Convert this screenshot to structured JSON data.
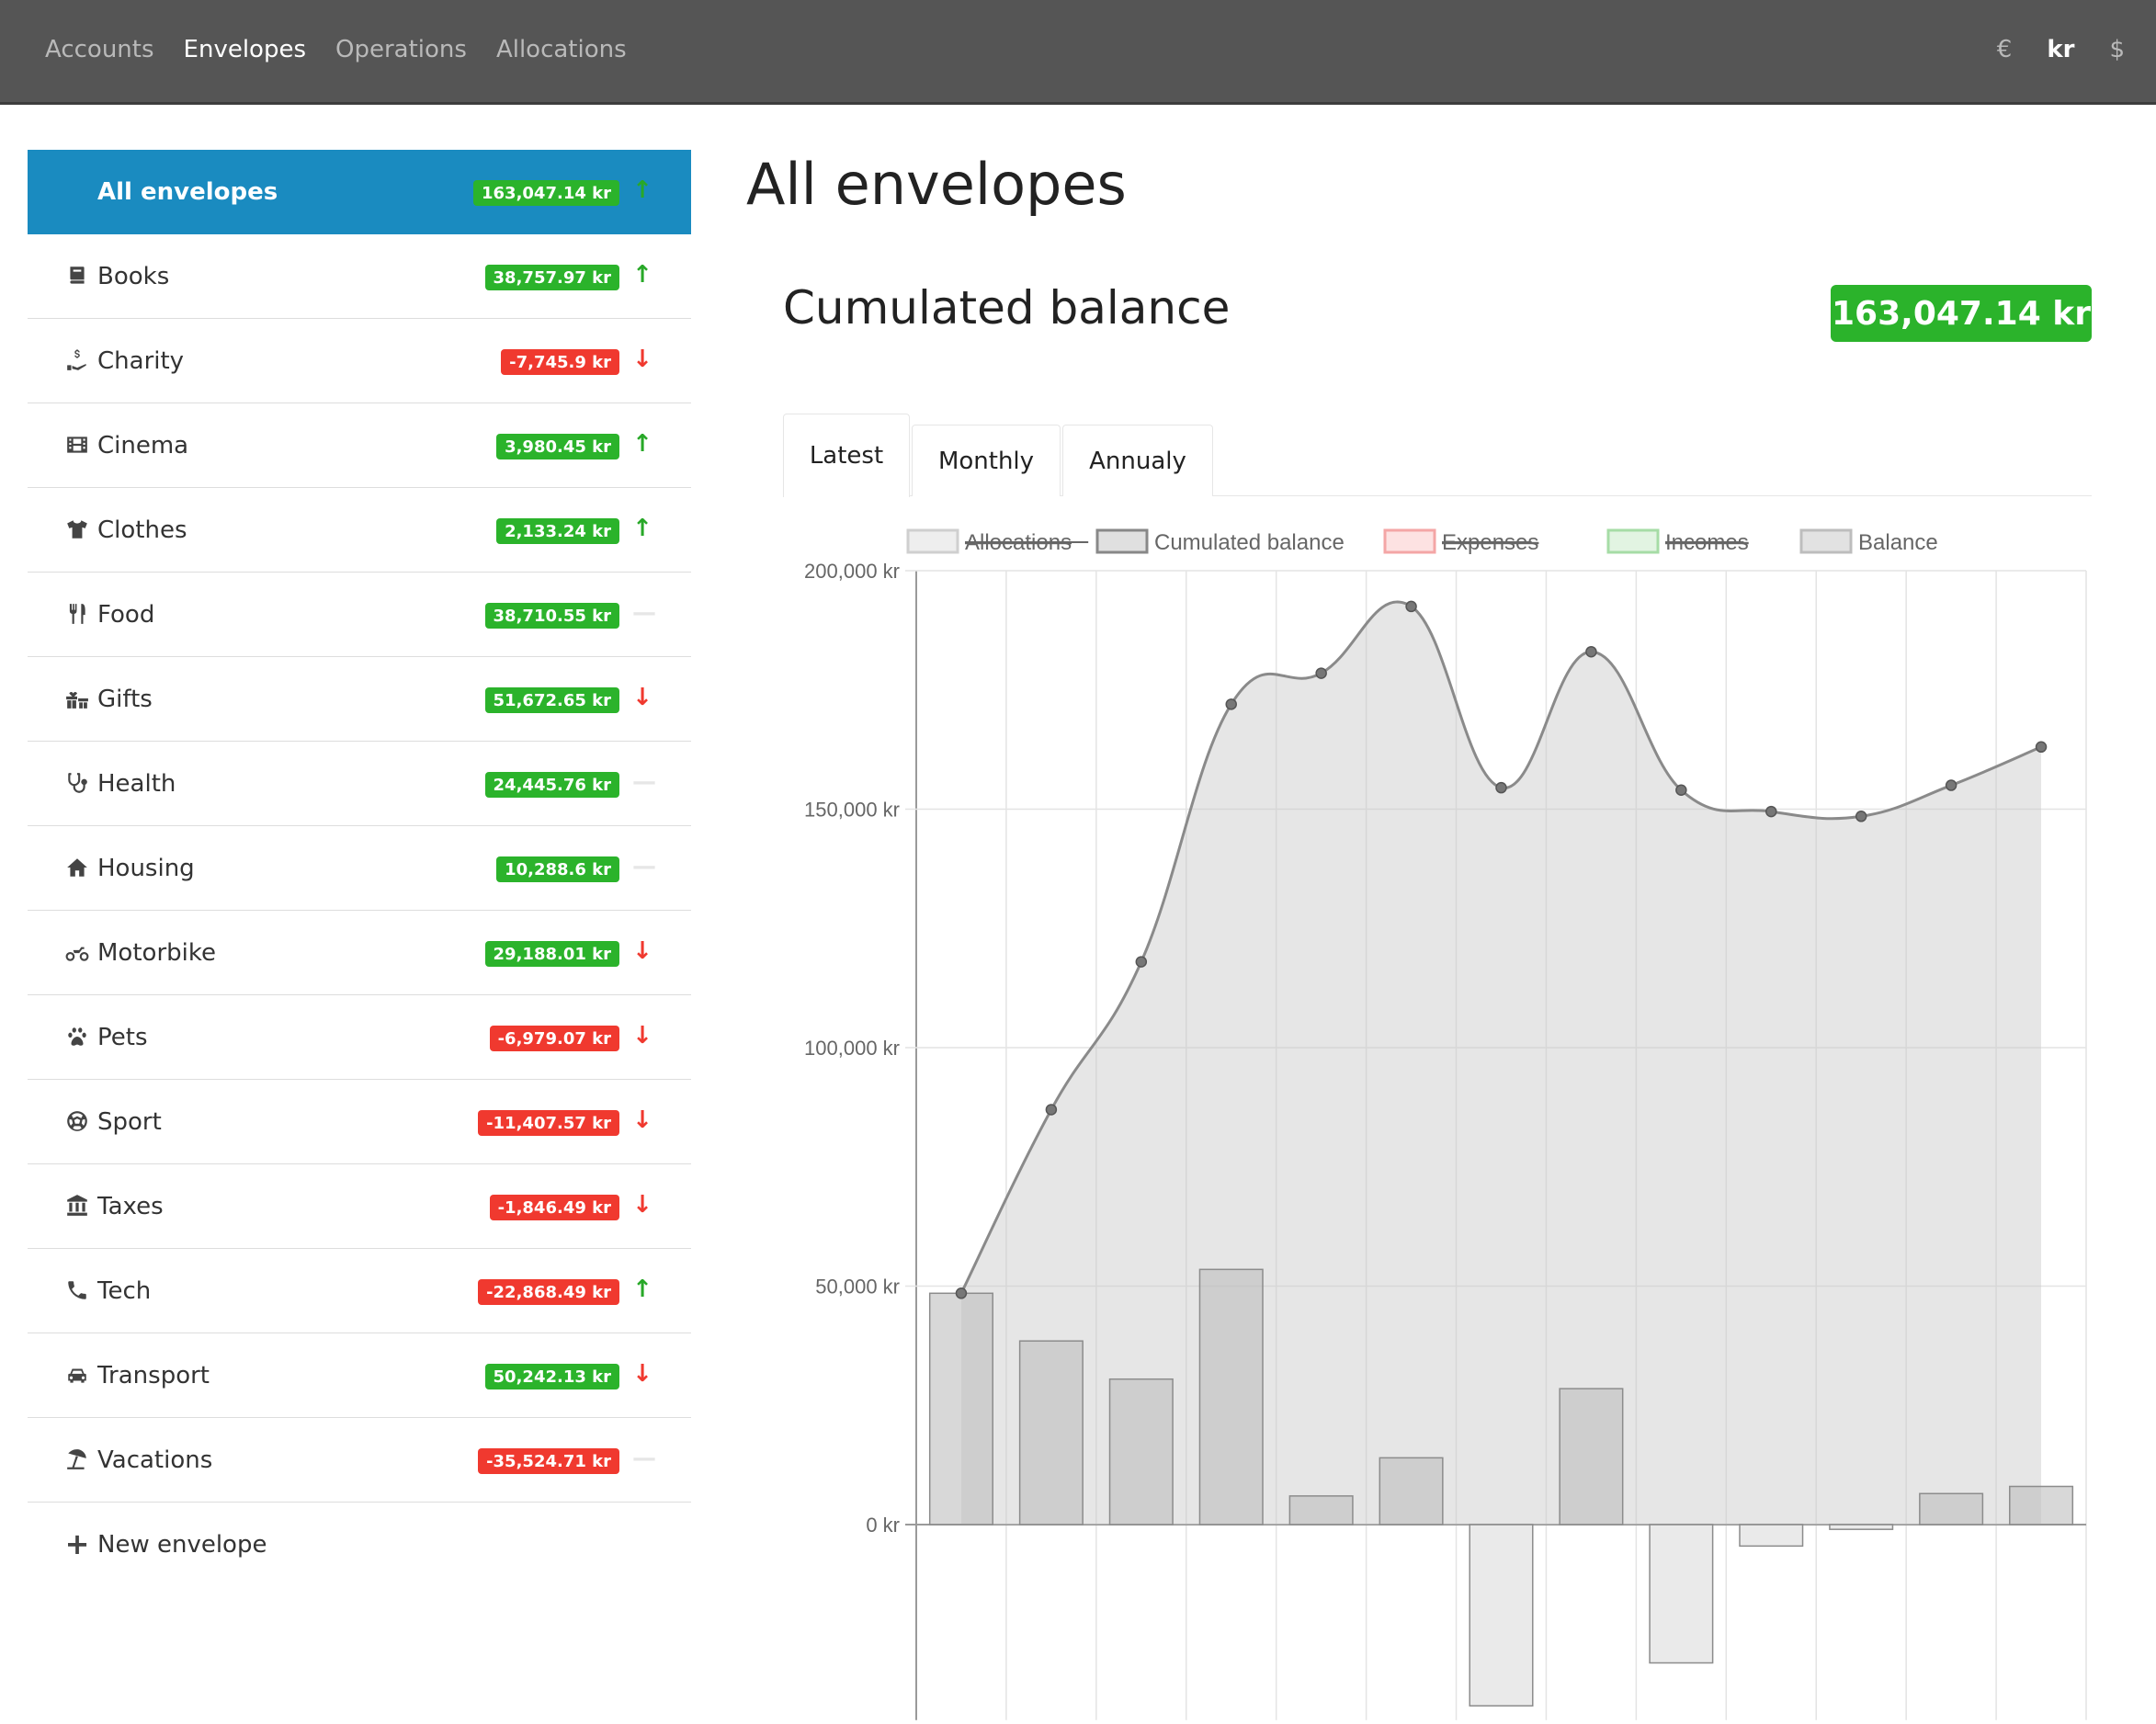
{
  "nav": {
    "links": [
      "Accounts",
      "Envelopes",
      "Operations",
      "Allocations"
    ],
    "active_link": "Envelopes",
    "currencies": [
      "€",
      "kr",
      "$"
    ],
    "active_currency": "kr"
  },
  "sidebar": {
    "items": [
      {
        "label": "All envelopes",
        "amount": "163,047.14 kr",
        "sign": "pos",
        "trend": "up",
        "icon": "none",
        "active": true
      },
      {
        "label": "Books",
        "amount": "38,757.97 kr",
        "sign": "pos",
        "trend": "up",
        "icon": "book-icon"
      },
      {
        "label": "Charity",
        "amount": "-7,745.9 kr",
        "sign": "neg",
        "trend": "down",
        "icon": "charity-hand-icon"
      },
      {
        "label": "Cinema",
        "amount": "3,980.45 kr",
        "sign": "pos",
        "trend": "up",
        "icon": "film-icon"
      },
      {
        "label": "Clothes",
        "amount": "2,133.24 kr",
        "sign": "pos",
        "trend": "up",
        "icon": "tshirt-icon"
      },
      {
        "label": "Food",
        "amount": "38,710.55 kr",
        "sign": "pos",
        "trend": "flat",
        "icon": "utensils-icon"
      },
      {
        "label": "Gifts",
        "amount": "51,672.65 kr",
        "sign": "pos",
        "trend": "down",
        "icon": "gifts-icon"
      },
      {
        "label": "Health",
        "amount": "24,445.76 kr",
        "sign": "pos",
        "trend": "flat",
        "icon": "stethoscope-icon"
      },
      {
        "label": "Housing",
        "amount": "10,288.6 kr",
        "sign": "pos",
        "trend": "flat",
        "icon": "home-icon"
      },
      {
        "label": "Motorbike",
        "amount": "29,188.01 kr",
        "sign": "pos",
        "trend": "down",
        "icon": "motorcycle-icon"
      },
      {
        "label": "Pets",
        "amount": "-6,979.07 kr",
        "sign": "neg",
        "trend": "down",
        "icon": "paw-icon"
      },
      {
        "label": "Sport",
        "amount": "-11,407.57 kr",
        "sign": "neg",
        "trend": "down",
        "icon": "football-icon"
      },
      {
        "label": "Taxes",
        "amount": "-1,846.49 kr",
        "sign": "neg",
        "trend": "down",
        "icon": "landmark-icon"
      },
      {
        "label": "Tech",
        "amount": "-22,868.49 kr",
        "sign": "neg",
        "trend": "up",
        "icon": "phone-icon"
      },
      {
        "label": "Transport",
        "amount": "50,242.13 kr",
        "sign": "pos",
        "trend": "down",
        "icon": "car-icon"
      },
      {
        "label": "Vacations",
        "amount": "-35,524.71 kr",
        "sign": "neg",
        "trend": "flat",
        "icon": "umbrella-beach-icon"
      }
    ],
    "new_label": "New envelope",
    "trend_glyphs": {
      "up": "↑",
      "down": "↓",
      "flat": "—"
    }
  },
  "main": {
    "page_title": "All envelopes",
    "section_title": "Cumulated balance",
    "total": "163,047.14 kr",
    "tabs": [
      "Latest",
      "Monthly",
      "Annualy"
    ],
    "active_tab": "Latest"
  },
  "chart_data": {
    "type": "line",
    "legend": [
      {
        "name": "Allocations",
        "hidden": true,
        "fill": "#eeeeee",
        "stroke": "#cfcfcf"
      },
      {
        "name": "Cumulated balance",
        "hidden": false,
        "fill": "#e0e0e0",
        "stroke": "#888888"
      },
      {
        "name": "Expenses",
        "hidden": true,
        "fill": "#fde2e2",
        "stroke": "#f4a6a6"
      },
      {
        "name": "Incomes",
        "hidden": true,
        "fill": "#e2f4e2",
        "stroke": "#a6dca6"
      },
      {
        "name": "Balance",
        "hidden": false,
        "fill": "#e2e2e2",
        "stroke": "#bdbdbd"
      }
    ],
    "legend_placement": "top",
    "y_ticks": [
      "200,000 kr",
      "150,000 kr",
      "100,000 kr",
      "50,000 kr",
      "0 kr"
    ],
    "ylim": [
      -41000,
      200000
    ],
    "points_count": 13,
    "series": [
      {
        "name": "Cumulated balance",
        "type": "line",
        "values": [
          48500,
          87000,
          118000,
          172000,
          178500,
          192500,
          154500,
          183000,
          154000,
          149500,
          148500,
          155000,
          163047.14
        ]
      },
      {
        "name": "Balance",
        "type": "bar",
        "values": [
          48500,
          38500,
          30500,
          53500,
          6000,
          14000,
          -38000,
          28500,
          -29000,
          -4500,
          -1000,
          6500,
          8000
        ]
      }
    ],
    "grid": true
  }
}
